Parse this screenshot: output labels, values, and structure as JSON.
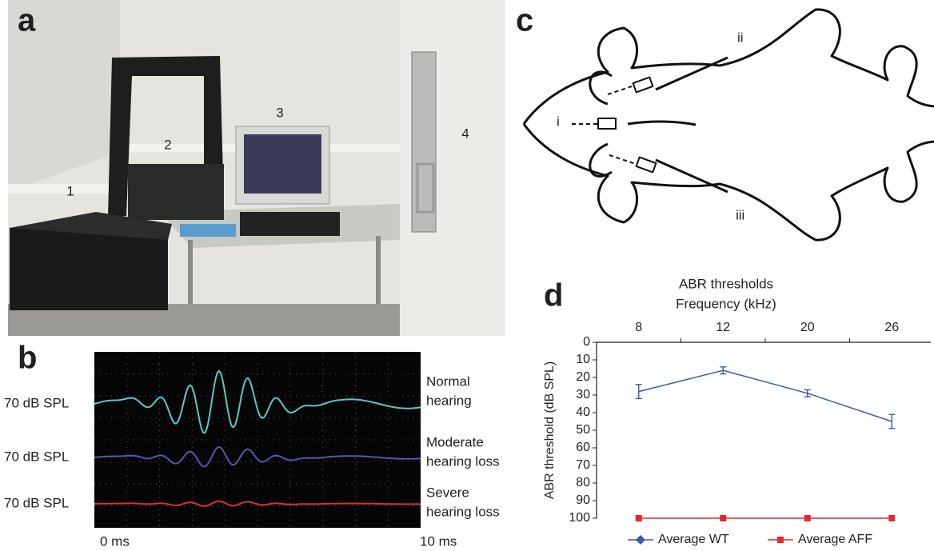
{
  "figure": {
    "panel_a": {
      "label": "a",
      "callouts": [
        "1",
        "2",
        "3",
        "4"
      ]
    },
    "panel_b": {
      "label": "b",
      "traces": [
        {
          "level": "70 dB SPL",
          "condition": [
            "Normal",
            "hearing"
          ]
        },
        {
          "level": "70 dB SPL",
          "condition": [
            "Moderate",
            "hearing loss"
          ]
        },
        {
          "level": "70 dB SPL",
          "condition": [
            "Severe",
            "hearing loss"
          ]
        }
      ],
      "time_start": "0 ms",
      "time_end": "10 ms"
    },
    "panel_c": {
      "label": "c",
      "electrodes": [
        "i",
        "ii",
        "iii"
      ]
    },
    "panel_d": {
      "label": "d"
    }
  },
  "chart_data": {
    "type": "line",
    "title": "ABR thresholds",
    "xlabel": "Frequency (kHz)",
    "ylabel": "ABR threshold (dB SPL)",
    "categories": [
      "8",
      "12",
      "20",
      "26"
    ],
    "ylim": [
      0,
      100
    ],
    "y_inverted": true,
    "yticks": [
      0,
      10,
      20,
      30,
      40,
      50,
      60,
      70,
      80,
      90,
      100
    ],
    "series": [
      {
        "name": "Average WT",
        "color": "#3d5aa6",
        "marker": "diamond",
        "values": [
          28,
          16,
          29,
          45
        ],
        "errors": [
          4,
          2,
          2,
          4
        ]
      },
      {
        "name": "Average AFF",
        "color": "#e8262b",
        "marker": "square",
        "values": [
          100,
          100,
          100,
          100
        ]
      }
    ],
    "legend": "bottom"
  }
}
